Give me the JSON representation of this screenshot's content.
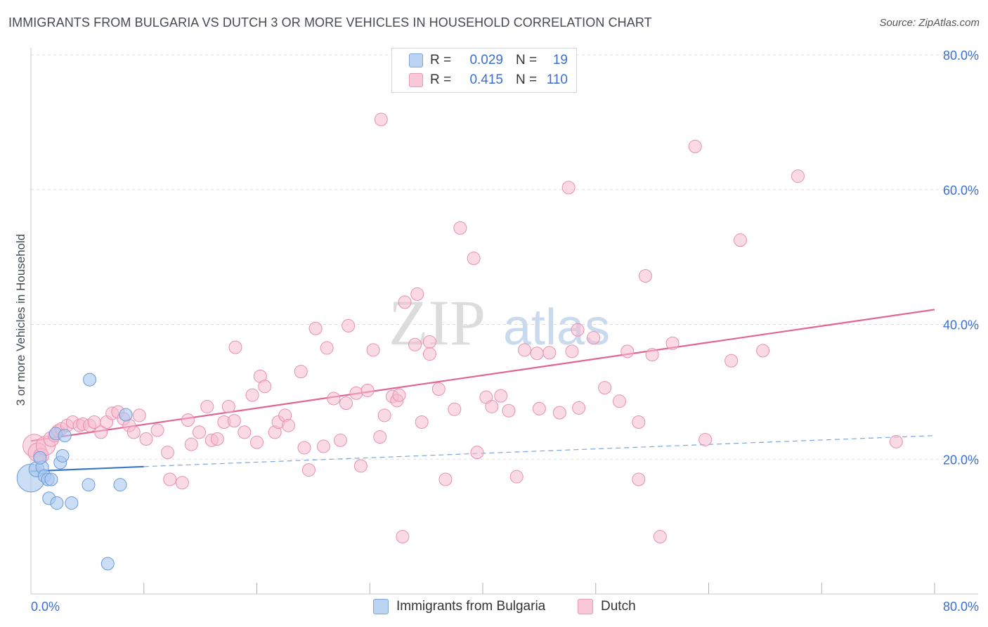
{
  "title": "IMMIGRANTS FROM BULGARIA VS DUTCH 3 OR MORE VEHICLES IN HOUSEHOLD CORRELATION CHART",
  "source": "Source: ZipAtlas.com",
  "watermark": {
    "zip": "ZIP",
    "atlas": "atlas"
  },
  "legend": {
    "rows": [
      {
        "r_label": "R =",
        "r_value": "0.029",
        "n_label": "N =",
        "n_value": "19"
      },
      {
        "r_label": "R =",
        "r_value": "0.415",
        "n_label": "N =",
        "n_value": "110"
      }
    ]
  },
  "bottom_legend": {
    "series1": "Immigrants from Bulgaria",
    "series2": "Dutch"
  },
  "colors": {
    "blue_fill": "#a9c8f0",
    "blue_stroke": "#6a9ad8",
    "blue_line": "#3a78c9",
    "pink_fill": "#f6bcd0",
    "pink_stroke": "#e98fb0",
    "pink_line": "#e2648f",
    "tick_label": "#3a6fd1",
    "grid": "#dddddd"
  },
  "chart_data": {
    "type": "scatter",
    "title": "IMMIGRANTS FROM BULGARIA VS DUTCH 3 OR MORE VEHICLES IN HOUSEHOLD CORRELATION CHART",
    "xlabel": "",
    "ylabel": "3 or more Vehicles in Household",
    "xlim": [
      0,
      80
    ],
    "ylim": [
      0,
      80
    ],
    "x_tick_labels": [
      "0.0%",
      "80.0%"
    ],
    "y_ticks": [
      20,
      40,
      60,
      80
    ],
    "y_tick_labels": [
      "20.0%",
      "40.0%",
      "60.0%",
      "80.0%"
    ],
    "grid": true,
    "series": [
      {
        "name": "Immigrants from Bulgaria",
        "R": 0.029,
        "N": 19,
        "trend_solid": [
          [
            0,
            18.2
          ],
          [
            10,
            18.9
          ]
        ],
        "trend_dashed": [
          [
            10,
            18.9
          ],
          [
            80,
            23.5
          ]
        ],
        "points": [
          [
            0.0,
            17.2,
            2.2
          ],
          [
            0.5,
            18.5,
            1.2
          ],
          [
            1.0,
            18.8,
            1.0
          ],
          [
            0.8,
            20.2,
            1.0
          ],
          [
            1.2,
            17.5,
            1.0
          ],
          [
            1.5,
            17.0,
            1.0
          ],
          [
            1.8,
            17.0,
            1.0
          ],
          [
            1.6,
            14.2,
            1.0
          ],
          [
            2.3,
            13.5,
            1.0
          ],
          [
            2.6,
            19.5,
            1.0
          ],
          [
            2.8,
            20.5,
            1.0
          ],
          [
            2.2,
            23.8,
            1.0
          ],
          [
            3.0,
            23.5,
            1.0
          ],
          [
            3.6,
            13.5,
            1.0
          ],
          [
            5.1,
            16.2,
            1.0
          ],
          [
            5.2,
            31.8,
            1.0
          ],
          [
            7.9,
            16.2,
            1.0
          ],
          [
            8.4,
            26.6,
            1.0
          ],
          [
            6.8,
            4.5,
            1.0
          ]
        ]
      },
      {
        "name": "Dutch",
        "R": 0.415,
        "N": 110,
        "trend_solid": [
          [
            0,
            22.7
          ],
          [
            80,
            42.2
          ]
        ],
        "points": [
          [
            0.3,
            22.0,
            1.8
          ],
          [
            0.6,
            21.0,
            1.5
          ],
          [
            0.9,
            20.5,
            1.2
          ],
          [
            1.3,
            22.0,
            1.5
          ],
          [
            1.8,
            23.0,
            1.2
          ],
          [
            2.1,
            23.5,
            1.0
          ],
          [
            2.4,
            24.2,
            1.0
          ],
          [
            2.7,
            24.5,
            1.0
          ],
          [
            3.2,
            25.0,
            1.0
          ],
          [
            3.7,
            25.5,
            1.0
          ],
          [
            4.3,
            25.0,
            1.0
          ],
          [
            4.6,
            25.2,
            1.0
          ],
          [
            5.2,
            25.0,
            1.0
          ],
          [
            5.6,
            25.5,
            1.0
          ],
          [
            6.2,
            24.0,
            1.0
          ],
          [
            6.7,
            25.5,
            1.0
          ],
          [
            7.2,
            26.8,
            1.0
          ],
          [
            7.7,
            27.0,
            1.0
          ],
          [
            8.2,
            26.0,
            1.0
          ],
          [
            8.7,
            25.0,
            1.0
          ],
          [
            9.1,
            24.0,
            1.0
          ],
          [
            9.6,
            26.5,
            1.0
          ],
          [
            10.2,
            23.0,
            1.0
          ],
          [
            11.2,
            24.3,
            1.0
          ],
          [
            12.1,
            21.0,
            1.0
          ],
          [
            12.3,
            17.0,
            1.0
          ],
          [
            13.4,
            16.5,
            1.0
          ],
          [
            13.9,
            25.8,
            1.0
          ],
          [
            14.2,
            22.2,
            1.0
          ],
          [
            14.9,
            24.0,
            1.0
          ],
          [
            15.6,
            27.8,
            1.0
          ],
          [
            16.0,
            22.8,
            1.0
          ],
          [
            16.5,
            23.0,
            1.0
          ],
          [
            17.1,
            25.5,
            1.0
          ],
          [
            17.5,
            27.8,
            1.0
          ],
          [
            18.0,
            25.7,
            1.0
          ],
          [
            18.1,
            36.6,
            1.0
          ],
          [
            18.9,
            24.0,
            1.0
          ],
          [
            19.6,
            29.5,
            1.0
          ],
          [
            20.0,
            22.5,
            1.0
          ],
          [
            20.3,
            32.3,
            1.0
          ],
          [
            20.7,
            30.8,
            1.0
          ],
          [
            21.6,
            24.0,
            1.0
          ],
          [
            21.9,
            25.5,
            1.0
          ],
          [
            22.5,
            26.5,
            1.0
          ],
          [
            22.8,
            25.0,
            1.0
          ],
          [
            23.9,
            33.0,
            1.0
          ],
          [
            24.2,
            21.7,
            1.0
          ],
          [
            24.6,
            18.4,
            1.0
          ],
          [
            25.2,
            39.4,
            1.0
          ],
          [
            25.9,
            21.9,
            1.0
          ],
          [
            26.2,
            36.5,
            1.0
          ],
          [
            26.8,
            29.0,
            1.0
          ],
          [
            27.4,
            22.8,
            1.0
          ],
          [
            27.9,
            28.3,
            1.0
          ],
          [
            28.1,
            39.8,
            1.0
          ],
          [
            28.8,
            29.8,
            1.0
          ],
          [
            29.2,
            19.0,
            1.0
          ],
          [
            29.8,
            30.2,
            1.0
          ],
          [
            30.3,
            36.2,
            1.0
          ],
          [
            30.9,
            23.3,
            1.0
          ],
          [
            31.3,
            26.5,
            1.0
          ],
          [
            31.0,
            70.4,
            1.0
          ],
          [
            32.0,
            29.3,
            1.0
          ],
          [
            32.4,
            28.7,
            1.0
          ],
          [
            32.6,
            29.5,
            1.0
          ],
          [
            32.9,
            8.5,
            1.0
          ],
          [
            33.1,
            43.3,
            1.0
          ],
          [
            34.0,
            37.0,
            1.0
          ],
          [
            34.2,
            44.5,
            1.0
          ],
          [
            34.6,
            25.5,
            1.0
          ],
          [
            35.3,
            37.4,
            1.0
          ],
          [
            35.3,
            35.6,
            1.0
          ],
          [
            36.1,
            30.4,
            1.0
          ],
          [
            36.7,
            17.0,
            1.0
          ],
          [
            37.5,
            27.4,
            1.0
          ],
          [
            38.0,
            54.3,
            1.0
          ],
          [
            39.2,
            49.8,
            1.0
          ],
          [
            39.5,
            21.0,
            1.0
          ],
          [
            40.3,
            29.2,
            1.0
          ],
          [
            40.8,
            27.8,
            1.0
          ],
          [
            41.6,
            29.4,
            1.0
          ],
          [
            42.3,
            27.2,
            1.0
          ],
          [
            43.0,
            17.4,
            1.0
          ],
          [
            43.7,
            36.2,
            1.0
          ],
          [
            44.8,
            35.7,
            1.0
          ],
          [
            45.0,
            27.5,
            1.0
          ],
          [
            45.9,
            35.8,
            1.0
          ],
          [
            46.8,
            26.9,
            1.0
          ],
          [
            47.6,
            60.3,
            1.0
          ],
          [
            47.9,
            36.0,
            1.0
          ],
          [
            48.4,
            39.2,
            1.0
          ],
          [
            48.5,
            27.6,
            1.0
          ],
          [
            49.8,
            38.0,
            1.0
          ],
          [
            50.8,
            30.6,
            1.0
          ],
          [
            52.1,
            28.6,
            1.0
          ],
          [
            52.8,
            36.0,
            1.0
          ],
          [
            53.8,
            17.0,
            1.0
          ],
          [
            53.8,
            25.5,
            1.0
          ],
          [
            54.4,
            47.2,
            1.0
          ],
          [
            55.0,
            35.5,
            1.0
          ],
          [
            55.7,
            8.5,
            1.0
          ],
          [
            56.8,
            37.2,
            1.0
          ],
          [
            58.8,
            66.4,
            1.0
          ],
          [
            59.7,
            22.9,
            1.0
          ],
          [
            62.0,
            34.6,
            1.0
          ],
          [
            62.8,
            52.5,
            1.0
          ],
          [
            64.8,
            36.1,
            1.0
          ],
          [
            67.9,
            62.0,
            1.0
          ],
          [
            76.6,
            22.6,
            1.0
          ]
        ]
      }
    ]
  }
}
